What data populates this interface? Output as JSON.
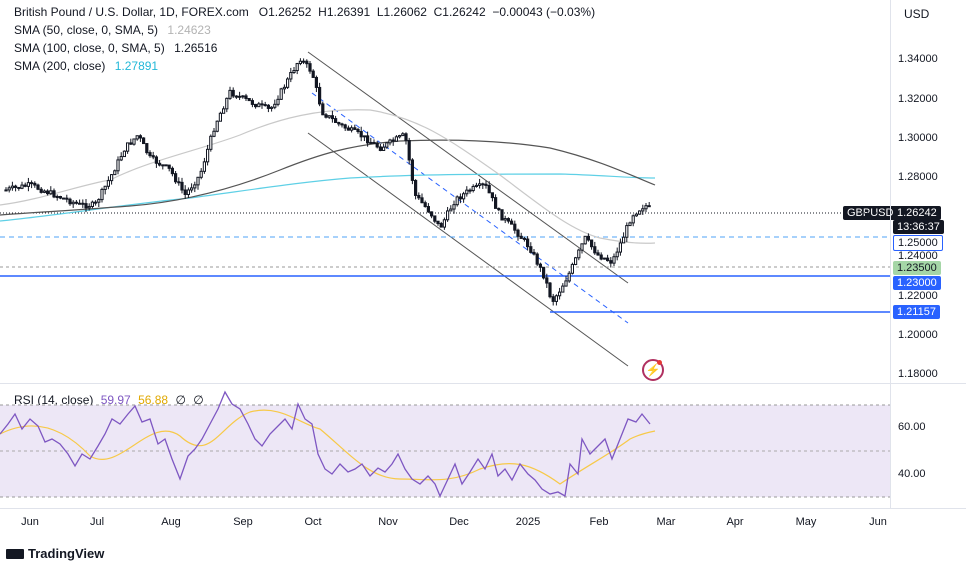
{
  "header": {
    "symbol_title": "British Pound / U.S. Dollar, 1D, FOREX.com",
    "open": "O1.26252",
    "high": "H1.26391",
    "low": "L1.26062",
    "close": "C1.26242",
    "change": "−0.00043 (−0.03%)",
    "currency": "USD"
  },
  "indicators": [
    {
      "label": "SMA (50, close, 0, SMA, 5)",
      "value": "1.24623",
      "color": "#c9c9c9"
    },
    {
      "label": "SMA (100, close, 0, SMA, 5)",
      "value": "1.26516",
      "color": "#555555"
    },
    {
      "label": "SMA (200, close)",
      "value": "1.27891",
      "color": "#5fd0e6"
    }
  ],
  "price_axis": [
    "1.34000",
    "1.32000",
    "1.30000",
    "1.28000",
    "1.26000",
    "1.24000",
    "1.22000",
    "1.20000",
    "1.18000"
  ],
  "price_tags": {
    "symbol": "GBPUSD",
    "last": "1.26242",
    "countdown": "13:36:37",
    "level_1": "1.25000",
    "level_2": "1.23500",
    "level_3": "1.23000",
    "level_4": "1.21157"
  },
  "rsi": {
    "label": "RSI (14, close)",
    "value": "59.97",
    "ma_value": "56.88",
    "empty_1": "∅",
    "empty_2": "∅",
    "axis": [
      "60.00",
      "40.00"
    ]
  },
  "time_axis": [
    "Jun",
    "Jul",
    "Aug",
    "Sep",
    "Oct",
    "Nov",
    "Dec",
    "2025",
    "Feb",
    "Mar",
    "Apr",
    "May",
    "Jun"
  ],
  "branding": {
    "logo_text": "TradingView"
  },
  "colors": {
    "up": "#131722",
    "down": "#131722",
    "sma50": "#c9c9c9",
    "sma100": "#555555",
    "sma200": "#5fd0e6",
    "level_line": "#2962ff",
    "rsi_line": "#7e57c2",
    "rsi_ma": "#f7c948",
    "rsi_band": "#ede7f6"
  }
}
